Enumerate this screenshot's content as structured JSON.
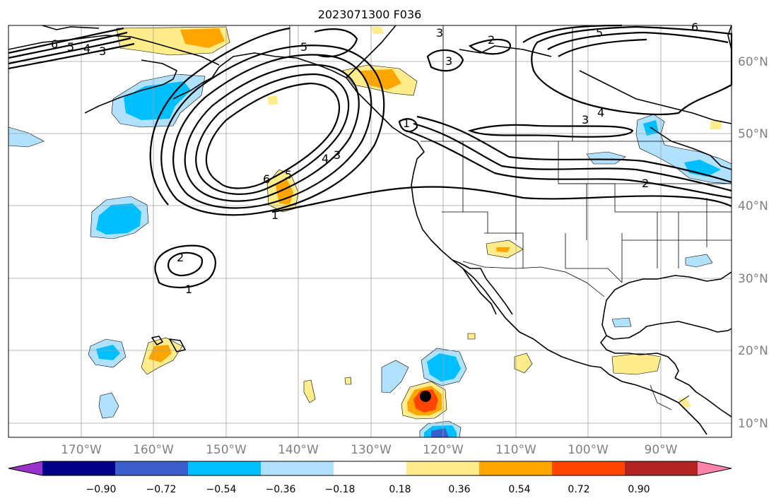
{
  "title": "2023071300 F036",
  "lat_labels": [
    "60°N",
    "50°N",
    "40°N",
    "30°N",
    "20°N",
    "10°N"
  ],
  "lon_labels": [
    "170°W",
    "160°W",
    "150°W",
    "140°W",
    "130°W",
    "120°W",
    "110°W",
    "100°W",
    "90°W"
  ],
  "colorbar": {
    "tick_labels": [
      "−0.90",
      "−0.72",
      "−0.54",
      "−0.36",
      "−0.18",
      "0.18",
      "0.36",
      "0.54",
      "0.72",
      "0.90"
    ],
    "colors": [
      "#9932cc",
      "#00008b",
      "#3a5fcd",
      "#00bfff",
      "#b0e2ff",
      "#ffffff",
      "#ffec8b",
      "#ffa500",
      "#ff4500",
      "#b22222",
      "#ff82ab"
    ]
  },
  "contour_labels": [
    "6",
    "5",
    "4",
    "3",
    "5",
    "3",
    "2",
    "3",
    "5",
    "6",
    "1",
    "6",
    "5",
    "4",
    "3",
    "1",
    "2",
    "1",
    "3",
    "4",
    "2"
  ],
  "colors": {
    "neg_036": "#00bfff",
    "neg_018": "#b0e2ff",
    "pos_018": "#ffec8b",
    "pos_036": "#ffa500",
    "pos_054": "#ff4500",
    "neg_054": "#3a5fcd",
    "grid": "#a0a0a0",
    "axis_text": "#808080"
  }
}
